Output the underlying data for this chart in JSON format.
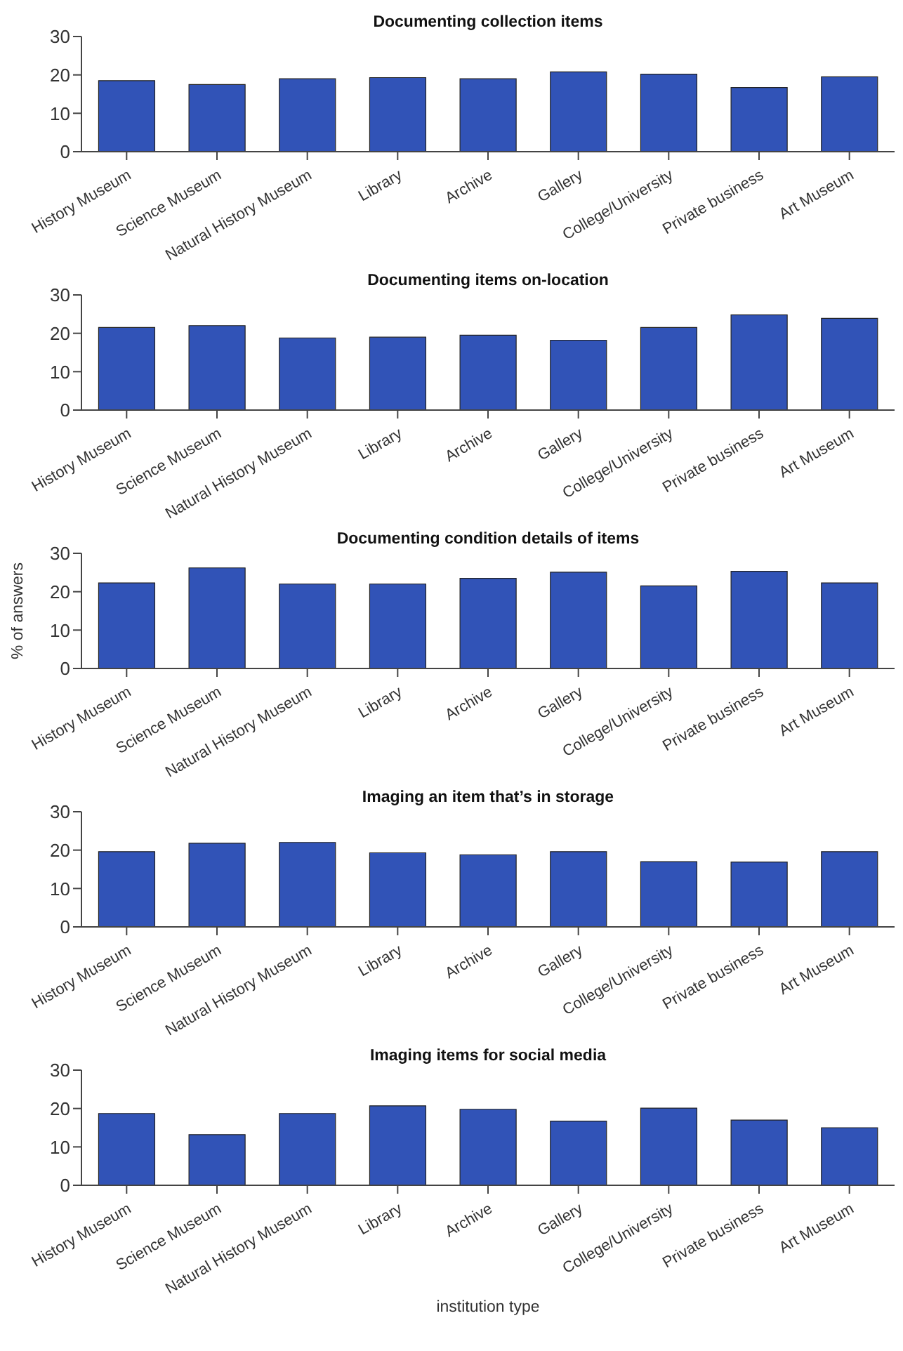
{
  "chart_data": [
    {
      "type": "bar",
      "title": "Documenting collection items",
      "categories": [
        "History Museum",
        "Science Museum",
        "Natural History Museum",
        "Library",
        "Archive",
        "Gallery",
        "College/University",
        "Private business",
        "Art Museum"
      ],
      "values": [
        18.5,
        17.5,
        19,
        19.3,
        19,
        20.8,
        20.2,
        16.7,
        19.5
      ],
      "color": "#3153b7",
      "ylim": [
        0,
        30
      ],
      "yticks": [
        0,
        10,
        20,
        30
      ],
      "grid": false
    },
    {
      "type": "bar",
      "title": "Documenting items on-location",
      "categories": [
        "History Museum",
        "Science Museum",
        "Natural History Museum",
        "Library",
        "Archive",
        "Gallery",
        "College/University",
        "Private business",
        "Art Museum"
      ],
      "values": [
        21.5,
        22,
        18.8,
        19,
        19.5,
        18.2,
        21.5,
        24.8,
        23.9
      ],
      "color": "#3153b7",
      "ylim": [
        0,
        30
      ],
      "yticks": [
        0,
        10,
        20,
        30
      ],
      "grid": false
    },
    {
      "type": "bar",
      "title": "Documenting condition details of items",
      "ylabel": "% of answers",
      "categories": [
        "History Museum",
        "Science Museum",
        "Natural History Museum",
        "Library",
        "Archive",
        "Gallery",
        "College/University",
        "Private business",
        "Art Museum"
      ],
      "values": [
        22.3,
        26.2,
        22,
        22,
        23.5,
        25.1,
        21.5,
        25.3,
        22.3
      ],
      "color": "#3153b7",
      "ylim": [
        0,
        30
      ],
      "yticks": [
        0,
        10,
        20,
        30
      ],
      "grid": false
    },
    {
      "type": "bar",
      "title": "Imaging an item that’s in storage",
      "categories": [
        "History Museum",
        "Science Museum",
        "Natural History Museum",
        "Library",
        "Archive",
        "Gallery",
        "College/University",
        "Private business",
        "Art Museum"
      ],
      "values": [
        19.6,
        21.8,
        22,
        19.3,
        18.8,
        19.6,
        17,
        16.9,
        19.6
      ],
      "color": "#3153b7",
      "ylim": [
        0,
        30
      ],
      "yticks": [
        0,
        10,
        20,
        30
      ],
      "grid": false
    },
    {
      "type": "bar",
      "title": "Imaging items for social media",
      "xlabel": "institution type",
      "categories": [
        "History Museum",
        "Science Museum",
        "Natural History Museum",
        "Library",
        "Archive",
        "Gallery",
        "College/University",
        "Private business",
        "Art Museum"
      ],
      "values": [
        18.7,
        13.2,
        18.7,
        20.7,
        19.8,
        16.7,
        20.1,
        17,
        15
      ],
      "color": "#3153b7",
      "ylim": [
        0,
        30
      ],
      "yticks": [
        0,
        10,
        20,
        30
      ],
      "grid": false
    }
  ]
}
